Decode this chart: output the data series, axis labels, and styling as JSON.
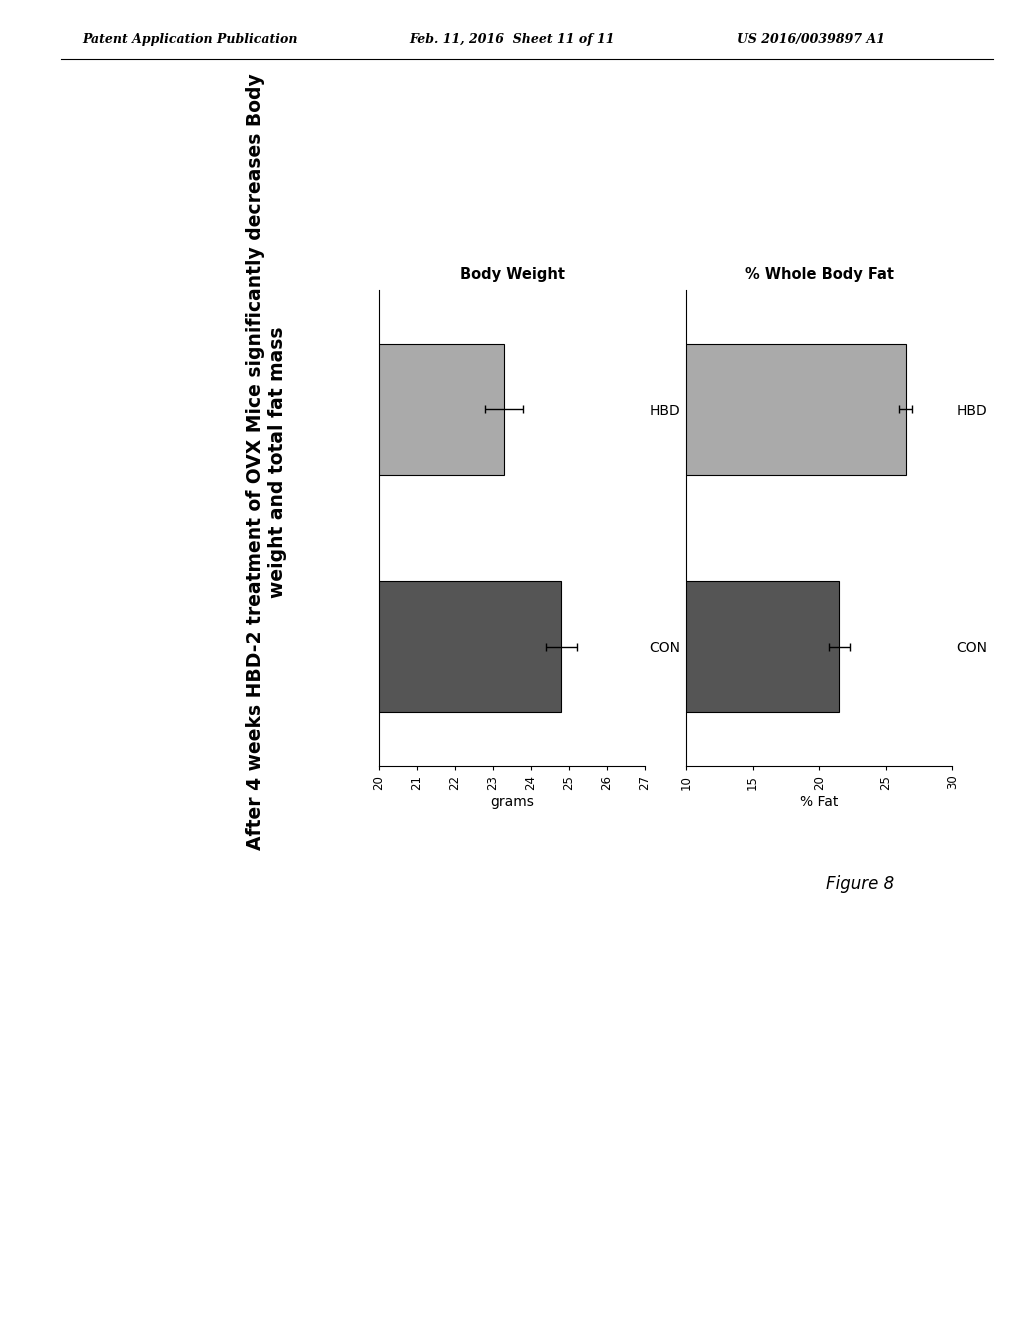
{
  "header_left": "Patent Application Publication",
  "header_center": "Feb. 11, 2016  Sheet 11 of 11",
  "header_right": "US 2016/0039897 A1",
  "figure_label": "Figure 8",
  "title_line1": "After 4 weeks HBD-2 treatment of OVX Mice significantly decreases Body",
  "title_line2": "weight and total fat mass",
  "chart1_title": "Body Weight",
  "chart1_xlabel": "grams",
  "chart1_categories": [
    "CON",
    "HBD"
  ],
  "chart1_values": [
    24.8,
    23.3
  ],
  "chart1_errors": [
    0.4,
    0.5
  ],
  "chart1_xlim": [
    20,
    27
  ],
  "chart1_xticks": [
    20,
    21,
    22,
    23,
    24,
    25,
    26,
    27
  ],
  "chart1_colors": [
    "#555555",
    "#aaaaaa"
  ],
  "chart2_title": "% Whole Body Fat",
  "chart2_xlabel": "% Fat",
  "chart2_categories": [
    "CON",
    "HBD"
  ],
  "chart2_values": [
    21.5,
    26.5
  ],
  "chart2_errors": [
    0.8,
    0.5
  ],
  "chart2_xlim": [
    10,
    30
  ],
  "chart2_xticks": [
    10,
    15,
    20,
    25,
    30
  ],
  "chart2_colors": [
    "#555555",
    "#aaaaaa"
  ],
  "background_color": "#ffffff",
  "text_color": "#000000"
}
